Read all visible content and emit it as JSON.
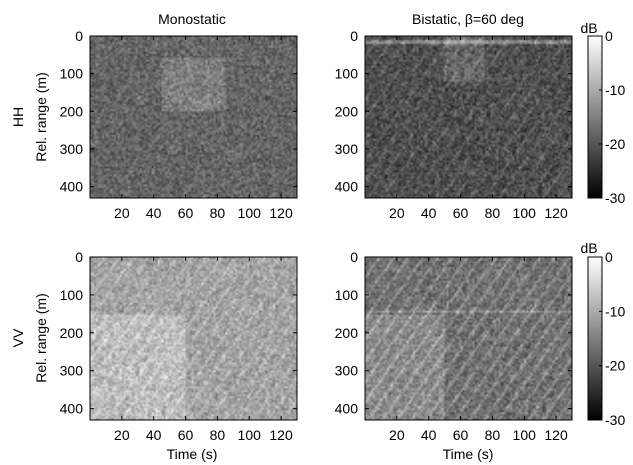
{
  "chart_data": [
    {
      "type": "heatmap",
      "title": "Monostatic",
      "row_label": "HH",
      "xlabel": "",
      "ylabel": "Rel. range (m)",
      "xlim": [
        0,
        130
      ],
      "ylim": [
        0,
        430
      ],
      "y_reversed": true,
      "xticks": [
        20,
        40,
        60,
        80,
        100,
        120
      ],
      "yticks": [
        0,
        100,
        200,
        300,
        400
      ],
      "clim": [
        -30,
        0
      ],
      "colormap": "gray",
      "mean_level_db": -18,
      "bright_region": {
        "x": [
          45,
          85
        ],
        "y": [
          60,
          200
        ]
      },
      "streak_level_db": 0,
      "streak_slope_m_per_s": 0,
      "line_level_db": 0,
      "line_y": 0
    },
    {
      "type": "heatmap",
      "title": "Bistatic, β=60 deg",
      "row_label": "HH",
      "xlabel": "",
      "ylabel": "",
      "xlim": [
        0,
        130
      ],
      "ylim": [
        0,
        430
      ],
      "y_reversed": true,
      "xticks": [
        20,
        40,
        60,
        80,
        100,
        120
      ],
      "yticks": [
        0,
        100,
        200,
        300,
        400
      ],
      "clim": [
        -30,
        0
      ],
      "colormap": "gray",
      "mean_level_db": -21,
      "bright_region": {
        "x": [
          50,
          75
        ],
        "y": [
          0,
          120
        ]
      },
      "streak_level_db": 4,
      "streak_slope_m_per_s": -6,
      "line_level_db": 7,
      "line_y": 15
    },
    {
      "type": "heatmap",
      "title": "",
      "row_label": "VV",
      "xlabel": "Time (s)",
      "ylabel": "Rel. range (m)",
      "xlim": [
        0,
        130
      ],
      "ylim": [
        0,
        430
      ],
      "y_reversed": true,
      "xticks": [
        20,
        40,
        60,
        80,
        100,
        120
      ],
      "yticks": [
        0,
        100,
        200,
        300,
        400
      ],
      "clim": [
        -30,
        0
      ],
      "colormap": "gray",
      "mean_level_db": -11,
      "bright_region": {
        "x": [
          0,
          60
        ],
        "y": [
          150,
          430
        ]
      },
      "streak_level_db": 4,
      "streak_slope_m_per_s": -6,
      "line_level_db": 0,
      "line_y": 0
    },
    {
      "type": "heatmap",
      "title": "",
      "row_label": "VV",
      "xlabel": "Time (s)",
      "ylabel": "",
      "xlim": [
        0,
        130
      ],
      "ylim": [
        0,
        430
      ],
      "y_reversed": true,
      "xticks": [
        20,
        40,
        60,
        80,
        100,
        120
      ],
      "yticks": [
        0,
        100,
        200,
        300,
        400
      ],
      "clim": [
        -30,
        0
      ],
      "colormap": "gray",
      "mean_level_db": -17,
      "bright_region": {
        "x": [
          0,
          50
        ],
        "y": [
          150,
          430
        ]
      },
      "streak_level_db": 7,
      "streak_slope_m_per_s": -6,
      "line_level_db": 4,
      "line_y": 145
    }
  ],
  "colorbars": [
    {
      "label": "dB",
      "clim": [
        -30,
        0
      ],
      "ticks": [
        0,
        -10,
        -20,
        -30
      ]
    },
    {
      "label": "dB",
      "clim": [
        -30,
        0
      ],
      "ticks": [
        0,
        -10,
        -20,
        -30
      ]
    }
  ]
}
